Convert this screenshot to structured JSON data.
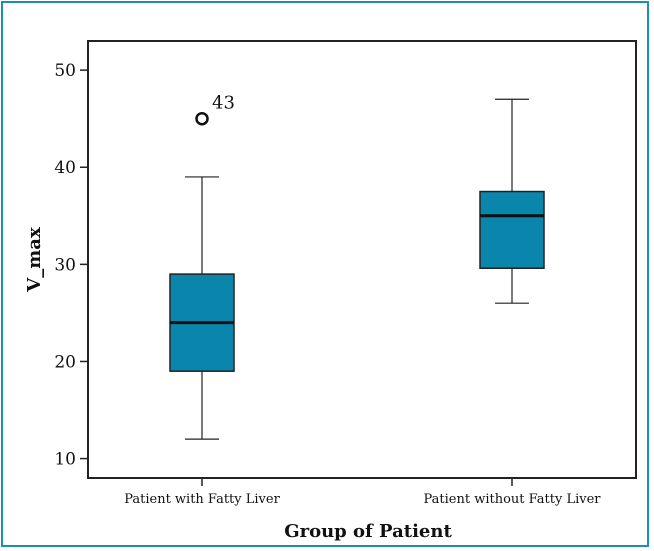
{
  "chart_data": {
    "type": "boxplot",
    "title": "",
    "xlabel": "Group of Patient",
    "ylabel": "V_max",
    "ylim": [
      8,
      53
    ],
    "yticks": [
      10,
      20,
      30,
      40,
      50
    ],
    "box_color": "#0a86ac",
    "frame_color": "#1a90b4",
    "grid": false,
    "categories": [
      "Patient with Fatty Liver",
      "Patient without Fatty Liver"
    ],
    "boxes": [
      {
        "category": "Patient with Fatty Liver",
        "whisker_low": 12,
        "q1": 19,
        "median": 24,
        "q3": 29,
        "whisker_high": 39,
        "outliers": [
          {
            "value": 45,
            "label": "43"
          }
        ]
      },
      {
        "category": "Patient without Fatty Liver",
        "whisker_low": 26,
        "q1": 29.6,
        "median": 35,
        "q3": 37.5,
        "whisker_high": 47,
        "outliers": []
      }
    ]
  }
}
